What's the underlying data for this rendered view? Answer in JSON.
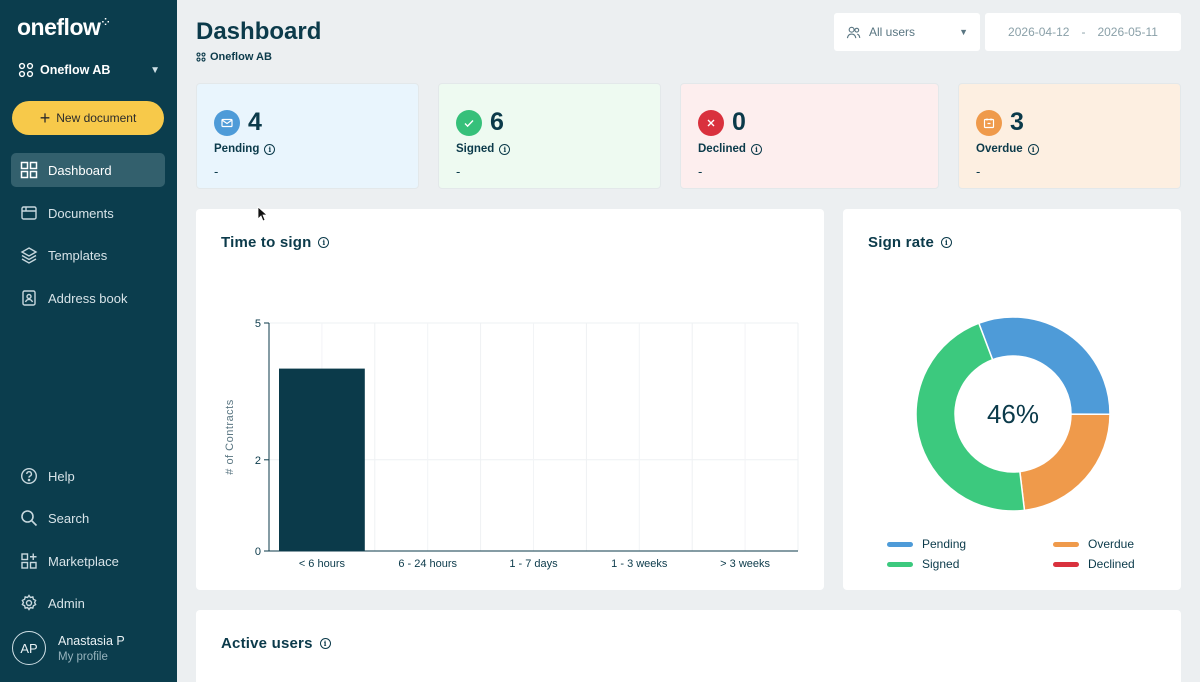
{
  "app": {
    "logo": "oneflow"
  },
  "sidebar": {
    "org_name": "Oneflow AB",
    "new_document_label": "New document",
    "items": [
      {
        "label": "Dashboard",
        "icon": "grid-icon"
      },
      {
        "label": "Documents",
        "icon": "folder-icon"
      },
      {
        "label": "Templates",
        "icon": "layers-icon"
      },
      {
        "label": "Address book",
        "icon": "address-book-icon"
      },
      {
        "label": "Help",
        "icon": "help-icon"
      },
      {
        "label": "Search",
        "icon": "search-icon"
      },
      {
        "label": "Marketplace",
        "icon": "marketplace-icon"
      },
      {
        "label": "Admin",
        "icon": "gear-icon"
      }
    ],
    "profile": {
      "initials": "AP",
      "name": "Anastasia P",
      "link": "My profile"
    }
  },
  "header": {
    "title": "Dashboard",
    "subtitle": "Oneflow AB",
    "users_filter": "All users",
    "date_from": "2026-04-12",
    "date_separator": "-",
    "date_to": "2026-05-11"
  },
  "stats": [
    {
      "value": "4",
      "label": "Pending",
      "sub": "-",
      "color": "#4e9bd8",
      "bg": "#e9f5fd"
    },
    {
      "value": "6",
      "label": "Signed",
      "sub": "-",
      "color": "#36c07a",
      "bg": "#eefaf1"
    },
    {
      "value": "0",
      "label": "Declined",
      "sub": "-",
      "color": "#d9313d",
      "bg": "#fdeeee"
    },
    {
      "value": "3",
      "label": "Overdue",
      "sub": "-",
      "color": "#ef9a4b",
      "bg": "#fdefe1"
    }
  ],
  "time_to_sign": {
    "title": "Time to sign",
    "chart_data": {
      "type": "bar",
      "categories": [
        "< 6 hours",
        "6 - 24 hours",
        "1 - 7 days",
        "1 - 3 weeks",
        "> 3 weeks"
      ],
      "values": [
        4,
        0,
        0,
        0,
        0
      ],
      "ylabel": "# of Contracts",
      "ylim": [
        0,
        5
      ],
      "yticks": [
        0,
        2,
        5
      ],
      "grid": true,
      "bar_color": "#0b3a4a"
    }
  },
  "sign_rate": {
    "title": "Sign rate",
    "center_label": "46%",
    "chart_data": {
      "type": "pie",
      "labels": [
        "Pending",
        "Overdue",
        "Signed",
        "Declined"
      ],
      "values": [
        4,
        3,
        6,
        0
      ],
      "colors": [
        "#4e9bd8",
        "#ef9a4b",
        "#3cc97e",
        "#d9313d"
      ],
      "legend": "bottom"
    }
  },
  "active_users": {
    "title": "Active users"
  }
}
